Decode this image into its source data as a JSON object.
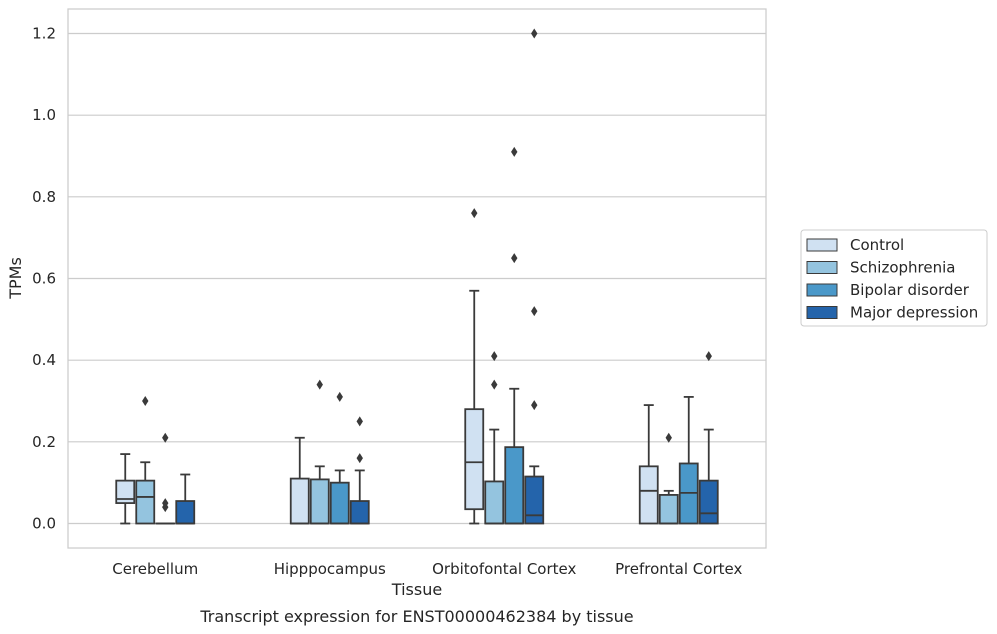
{
  "chart_data": {
    "type": "box",
    "title": "",
    "caption": "Transcript expression for ENST00000462384 by tissue",
    "xlabel": "Tissue",
    "ylabel": "TPMs",
    "ylim": [
      -0.06,
      1.26
    ],
    "yticks": [
      "0.0",
      "0.2",
      "0.4",
      "0.6",
      "0.8",
      "1.0",
      "1.2"
    ],
    "grid": "horizontal",
    "legend_position": "right",
    "categories": [
      "Cerebellum",
      "Hipppocampus",
      "Orbitofontal Cortex",
      "Prefrontal Cortex"
    ],
    "series": [
      {
        "name": "Control",
        "color": "#d0e1f2",
        "boxes": [
          {
            "whislo": 0.0,
            "q1": 0.05,
            "med": 0.06,
            "q3": 0.105,
            "whishi": 0.17,
            "fliers": []
          },
          {
            "whislo": 0.0,
            "q1": 0.0,
            "med": 0.0,
            "q3": 0.11,
            "whishi": 0.21,
            "fliers": []
          },
          {
            "whislo": 0.0,
            "q1": 0.035,
            "med": 0.15,
            "q3": 0.28,
            "whishi": 0.57,
            "fliers": [
              0.76
            ]
          },
          {
            "whislo": 0.0,
            "q1": 0.0,
            "med": 0.08,
            "q3": 0.14,
            "whishi": 0.29,
            "fliers": []
          }
        ]
      },
      {
        "name": "Schizophrenia",
        "color": "#94c4df",
        "boxes": [
          {
            "whislo": 0.0,
            "q1": 0.0,
            "med": 0.065,
            "q3": 0.105,
            "whishi": 0.15,
            "fliers": [
              0.3
            ]
          },
          {
            "whislo": 0.0,
            "q1": 0.0,
            "med": 0.0,
            "q3": 0.108,
            "whishi": 0.14,
            "fliers": [
              0.34
            ]
          },
          {
            "whislo": 0.0,
            "q1": 0.0,
            "med": 0.0,
            "q3": 0.103,
            "whishi": 0.23,
            "fliers": [
              0.34,
              0.41
            ]
          },
          {
            "whislo": 0.0,
            "q1": 0.0,
            "med": 0.0,
            "q3": 0.07,
            "whishi": 0.08,
            "fliers": [
              0.21
            ]
          }
        ]
      },
      {
        "name": "Bipolar disorder",
        "color": "#4a98c9",
        "boxes": [
          {
            "whislo": 0.0,
            "q1": 0.0,
            "med": 0.0,
            "q3": 0.0,
            "whishi": 0.0,
            "fliers": [
              0.04,
              0.05,
              0.21
            ]
          },
          {
            "whislo": 0.0,
            "q1": 0.0,
            "med": 0.0,
            "q3": 0.1,
            "whishi": 0.13,
            "fliers": [
              0.31
            ]
          },
          {
            "whislo": 0.0,
            "q1": 0.0,
            "med": 0.0,
            "q3": 0.187,
            "whishi": 0.33,
            "fliers": [
              0.65,
              0.91
            ]
          },
          {
            "whislo": 0.0,
            "q1": 0.0,
            "med": 0.075,
            "q3": 0.147,
            "whishi": 0.31,
            "fliers": []
          }
        ]
      },
      {
        "name": "Major depression",
        "color": "#2464ab",
        "boxes": [
          {
            "whislo": 0.0,
            "q1": 0.0,
            "med": 0.0,
            "q3": 0.055,
            "whishi": 0.12,
            "fliers": []
          },
          {
            "whislo": 0.0,
            "q1": 0.0,
            "med": 0.0,
            "q3": 0.055,
            "whishi": 0.13,
            "fliers": [
              0.16,
              0.25
            ]
          },
          {
            "whislo": 0.0,
            "q1": 0.0,
            "med": 0.02,
            "q3": 0.115,
            "whishi": 0.14,
            "fliers": [
              0.29,
              0.52,
              1.2
            ]
          },
          {
            "whislo": 0.0,
            "q1": 0.0,
            "med": 0.025,
            "q3": 0.105,
            "whishi": 0.23,
            "fliers": [
              0.41
            ]
          }
        ]
      }
    ]
  }
}
